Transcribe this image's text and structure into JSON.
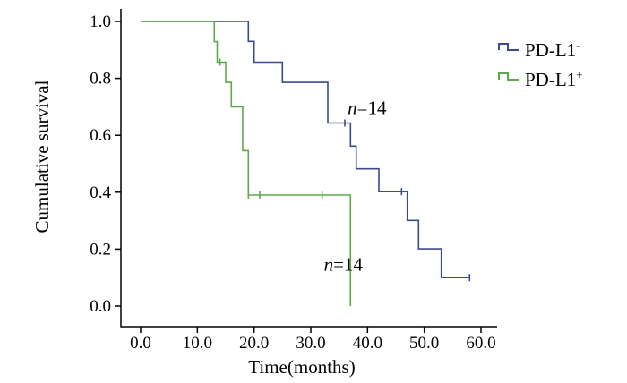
{
  "chart_data": {
    "type": "line",
    "title": "",
    "xlabel": "Time(months)",
    "ylabel": "Cumulative survival",
    "xlim": [
      0,
      60
    ],
    "ylim": [
      0,
      1
    ],
    "xticks": [
      0,
      10,
      20,
      30,
      40,
      50,
      60
    ],
    "yticks": [
      0,
      0.2,
      0.4,
      0.6,
      0.8,
      1.0
    ],
    "xtick_labels": [
      "0.0",
      "10.0",
      "20.0",
      "30.0",
      "40.0",
      "50.0",
      "60.0"
    ],
    "ytick_labels": [
      "0.0",
      "0.2",
      "0.4",
      "0.6",
      "0.8",
      "1.0"
    ],
    "grid": false,
    "legend_position": "top-right",
    "step": true,
    "series": [
      {
        "name": "PD-L1",
        "name_sup": "-",
        "color": "#3d4a8f",
        "points": [
          [
            0,
            1.0
          ],
          [
            19,
            1.0
          ],
          [
            19,
            0.93
          ],
          [
            20,
            0.93
          ],
          [
            20,
            0.857
          ],
          [
            25,
            0.857
          ],
          [
            25,
            0.786
          ],
          [
            33,
            0.786
          ],
          [
            33,
            0.643
          ],
          [
            37,
            0.643
          ],
          [
            37,
            0.562
          ],
          [
            38,
            0.562
          ],
          [
            38,
            0.482
          ],
          [
            42,
            0.482
          ],
          [
            42,
            0.402
          ],
          [
            47,
            0.402
          ],
          [
            47,
            0.301
          ],
          [
            49,
            0.301
          ],
          [
            49,
            0.201
          ],
          [
            53,
            0.201
          ],
          [
            53,
            0.1
          ],
          [
            58,
            0.1
          ]
        ],
        "censored": [
          [
            36,
            0.643
          ],
          [
            46,
            0.402
          ],
          [
            58,
            0.1
          ]
        ]
      },
      {
        "name": "PD-L1",
        "name_sup": "+",
        "color": "#5aaa4a",
        "points": [
          [
            0,
            1.0
          ],
          [
            13,
            1.0
          ],
          [
            13,
            0.929
          ],
          [
            13.5,
            0.929
          ],
          [
            13.5,
            0.857
          ],
          [
            15,
            0.857
          ],
          [
            15,
            0.786
          ],
          [
            16,
            0.786
          ],
          [
            16,
            0.7
          ],
          [
            18,
            0.7
          ],
          [
            18,
            0.546
          ],
          [
            19,
            0.546
          ],
          [
            19,
            0.39
          ],
          [
            37,
            0.39
          ],
          [
            37,
            0.0
          ]
        ],
        "censored": [
          [
            14,
            0.857
          ],
          [
            19,
            0.39
          ],
          [
            21,
            0.39
          ],
          [
            32,
            0.39
          ]
        ]
      }
    ],
    "annotations": [
      {
        "var": "n",
        "text": "=14",
        "x": 36.5,
        "y": 0.675
      },
      {
        "var": "n",
        "text": "=14",
        "x": 32.3,
        "y": 0.125
      }
    ]
  }
}
